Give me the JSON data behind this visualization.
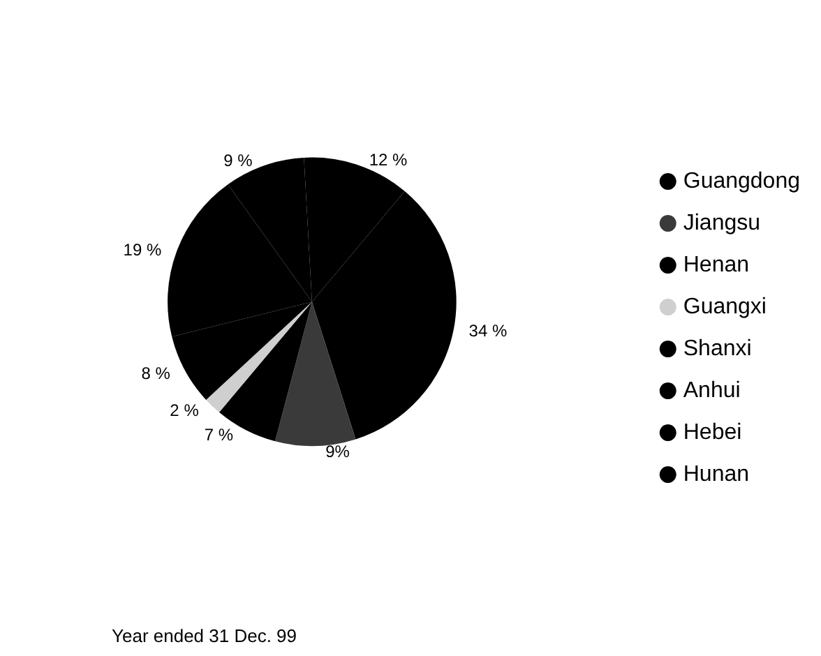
{
  "chart_data": {
    "type": "pie",
    "categories": [
      "Guangdong",
      "Jiangsu",
      "Henan",
      "Guangxi",
      "Shanxi",
      "Anhui",
      "Hebei",
      "Hunan"
    ],
    "values": [
      34,
      9,
      7,
      2,
      8,
      19,
      9,
      12
    ],
    "value_labels": [
      "34 %",
      "9%",
      "7 %",
      "2 %",
      "8 %",
      "19 %",
      "9 %",
      "12 %"
    ],
    "colors": [
      "#000000",
      "#3a3a3a",
      "#000000",
      "#cfcfcf",
      "#000000",
      "#000000",
      "#000000",
      "#000000"
    ],
    "legend": "right",
    "annotations": [
      "Year ended 31 Dec. 99"
    ]
  }
}
